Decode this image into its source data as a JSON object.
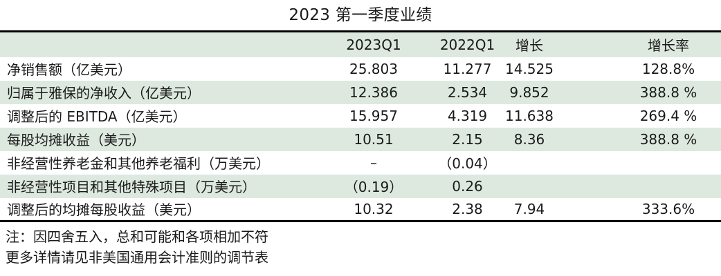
{
  "page_title": "2023 第一季度业绩",
  "colors": {
    "band_green": "#dde9df",
    "row_white": "#ffffff",
    "border_black": "#000000",
    "text_color": "#1a1a1a"
  },
  "chart_data": {
    "type": "table",
    "title": "2023 第一季度业绩",
    "columns": [
      "",
      "2023Q1",
      "2022Q1",
      "增长",
      "增长率"
    ],
    "rows": [
      [
        "净销售额（亿美元）",
        "25.803",
        "11.277",
        "14.525",
        "128.8%"
      ],
      [
        "归属于雅保的净收入（亿美元）",
        "12.386",
        "2.534",
        "9.852",
        "388.8 %"
      ],
      [
        "调整后的 EBITDA（亿美元）",
        "15.957",
        "4.319",
        "11.638",
        "269.4 %"
      ],
      [
        "每股均摊收益（美元）",
        "10.51",
        "2.15",
        "8.36",
        "388.8 %"
      ],
      [
        "非经营性养老金和其他养老福利（万美元）",
        "–",
        "（0.04）",
        "",
        ""
      ],
      [
        "非经营性项目和其他特殊项目（万美元）",
        "（0.19）",
        "0.26",
        "",
        ""
      ],
      [
        "调整后的均摊每股收益（美元）",
        "10.32",
        "2.38",
        "7.94",
        "333.6%"
      ]
    ],
    "notes": [
      "注：因四舍五入，总和可能和各项相加不符",
      "更多详情请见非美国通用会计准则的调节表"
    ],
    "layout": {
      "striped": true,
      "stripe_color": "#dde9df",
      "top_bottom_border": "3px solid #000000",
      "first_row_stripe": "white"
    }
  }
}
